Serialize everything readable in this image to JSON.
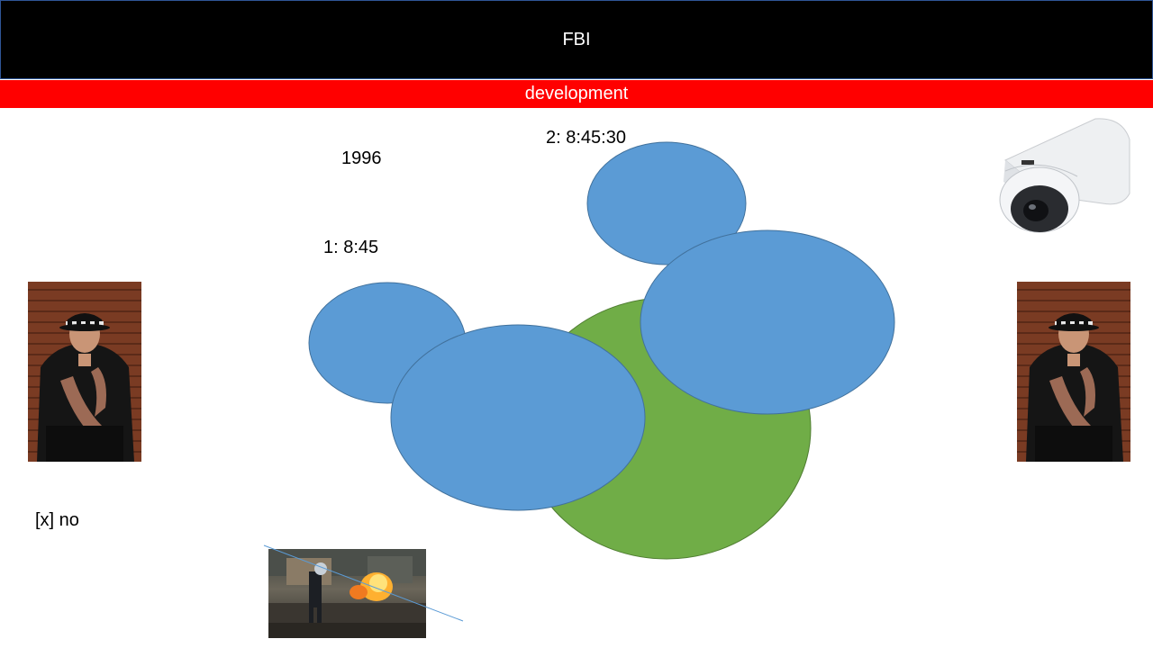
{
  "header": {
    "title": "FBI",
    "subtitle": "development"
  },
  "labels": {
    "year": "1996",
    "time_1": "1: 8:45",
    "time_2": "2: 8:45:30",
    "checkbox_text": "[x] no"
  },
  "images": {
    "officer_left": "police-officer-photo",
    "officer_right": "police-officer-photo",
    "camera": "security-dome-camera",
    "riot": "riot-police-fire-photo"
  },
  "colors": {
    "title_bg": "#000000",
    "subtitle_bg": "#ff0000",
    "blue_shape": "#5b9bd5",
    "green_shape": "#70ad47",
    "line": "#5b9bd5"
  }
}
